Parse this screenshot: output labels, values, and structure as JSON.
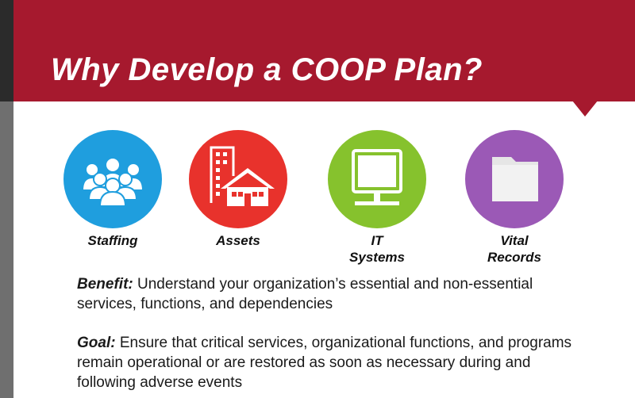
{
  "header": {
    "title": "Why Develop a COOP Plan?"
  },
  "colors": {
    "banner": "#a6192e",
    "staffing": "#1f9ede",
    "assets": "#e8322c",
    "it_systems": "#86c22d",
    "vital_records": "#9b59b6"
  },
  "categories": [
    {
      "icon": "people-group-icon",
      "line1": "Staffing",
      "line2": ""
    },
    {
      "icon": "building-house-icon",
      "line1": "Assets",
      "line2": ""
    },
    {
      "icon": "computer-monitor-icon",
      "line1": "IT",
      "line2": "Systems"
    },
    {
      "icon": "folder-icon",
      "line1": "Vital",
      "line2": "Records"
    }
  ],
  "benefit": {
    "lead": "Benefit:",
    "text": " Understand your organization’s essential and non-essential services, functions, and dependencies"
  },
  "goal": {
    "lead": "Goal:",
    "text": " Ensure that critical services, organizational functions, and programs remain operational or are restored as soon as necessary during and following adverse events"
  }
}
